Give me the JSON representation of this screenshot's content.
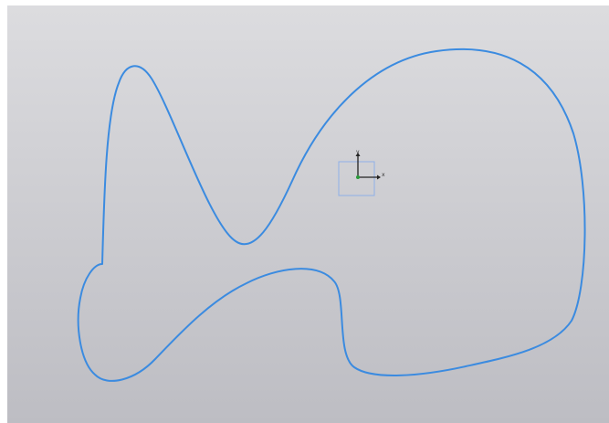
{
  "canvas": {
    "background_top": "#dcdcdf",
    "background_bottom": "#bdbdc3"
  },
  "sketch": {
    "profile_color": "#3b8be0",
    "triad_frame_color": "#8fb0e8",
    "triad_origin_color": "#2a9a3a",
    "triad_axis_color": "#222222",
    "x_axis_label": "x",
    "y_axis_label": "y"
  }
}
